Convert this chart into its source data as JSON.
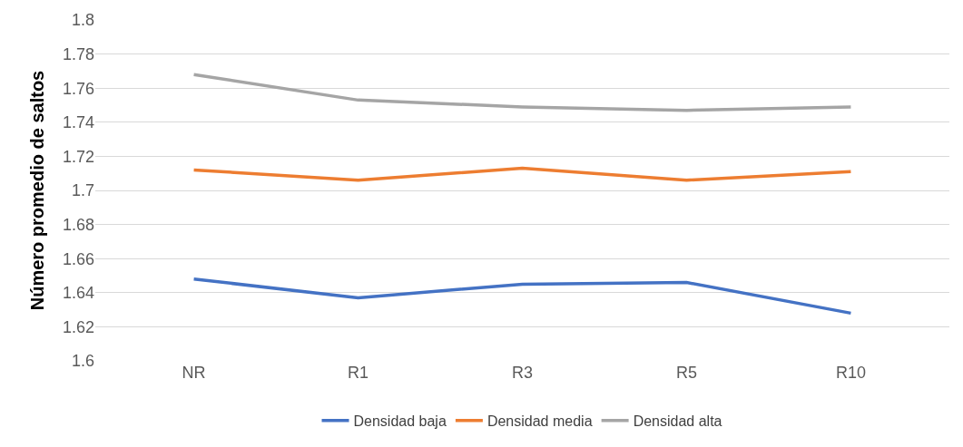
{
  "chart_data": {
    "type": "line",
    "ylabel": "Número promedio de saltos",
    "categories": [
      "NR",
      "R1",
      "R3",
      "R5",
      "R10"
    ],
    "series": [
      {
        "name": "Densidad baja",
        "color": "#4472c4",
        "values": [
          1.648,
          1.637,
          1.645,
          1.646,
          1.628
        ]
      },
      {
        "name": "Densidad media",
        "color": "#ed7d31",
        "values": [
          1.712,
          1.706,
          1.713,
          1.706,
          1.711
        ]
      },
      {
        "name": "Densidad alta",
        "color": "#a5a5a5",
        "values": [
          1.768,
          1.753,
          1.749,
          1.747,
          1.749
        ]
      }
    ],
    "ylim": [
      1.6,
      1.8
    ],
    "yticks": [
      1.6,
      1.62,
      1.64,
      1.66,
      1.68,
      1.7,
      1.72,
      1.74,
      1.76,
      1.78,
      1.8
    ],
    "grid": "y",
    "legend": "bottom",
    "marker": "none",
    "line_style": "solid"
  }
}
